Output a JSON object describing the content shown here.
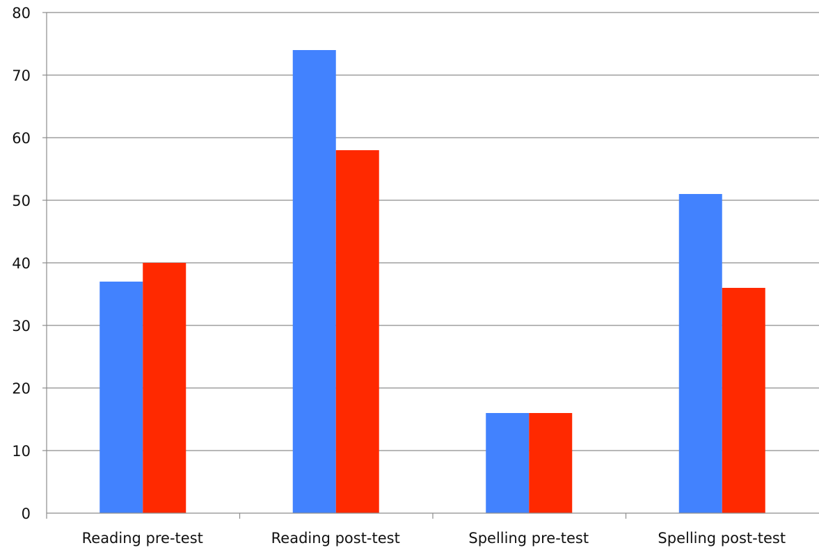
{
  "chart_data": {
    "type": "bar",
    "title": "",
    "xlabel": "",
    "ylabel": "",
    "categories": [
      "Reading pre-test",
      "Reading post-test",
      "Spelling pre-test",
      "Spelling post-test"
    ],
    "series": [
      {
        "color": "#4282fe",
        "values": [
          37,
          74,
          16,
          51
        ]
      },
      {
        "color": "#ff2900",
        "values": [
          40,
          58,
          16,
          36
        ]
      }
    ],
    "ylim": [
      0,
      80
    ],
    "yticks": [
      0,
      10,
      20,
      30,
      40,
      50,
      60,
      70,
      80
    ],
    "grid": true,
    "legend": "none"
  }
}
